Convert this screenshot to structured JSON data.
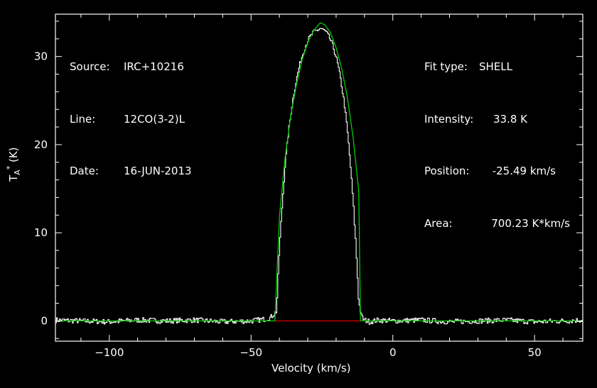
{
  "info_left": [
    {
      "key": "Source:",
      "value": "IRC+10216"
    },
    {
      "key": "Line:",
      "value": "12CO(3-2)L"
    },
    {
      "key": "Date:",
      "value": "16-JUN-2013"
    }
  ],
  "info_right": [
    {
      "key": "Fit type:",
      "value": "SHELL"
    },
    {
      "key": "Intensity:",
      "value": "33.8 K"
    },
    {
      "key": "Position:",
      "value": "-25.49 km/s"
    },
    {
      "key": "Area:",
      "value": "700.23 K*km/s"
    }
  ],
  "chart_data": {
    "type": "line",
    "xlabel": "Velocity (km/s)",
    "ylabel_main": "T",
    "ylabel_sup": "*",
    "ylabel_sub": "A",
    "ylabel_unit": "(K)",
    "xlim": [
      -119,
      67
    ],
    "ylim": [
      -2.3,
      34.8
    ],
    "xticks": [
      -100,
      -50,
      0,
      50
    ],
    "xtick_labels": [
      "−100",
      "−50",
      "0",
      "50"
    ],
    "yticks": [
      0,
      10,
      20,
      30
    ],
    "ytick_labels": [
      "0",
      "10",
      "20",
      "30"
    ],
    "colors": {
      "data": "#ffffff",
      "fit": "#00cc00",
      "baseline": "#cc0000",
      "axes": "#ffffff"
    },
    "series": [
      {
        "name": "",
        "style": "histogram",
        "x": [
          -119,
          -110,
          -100,
          -90,
          -80,
          -70,
          -60,
          -50,
          -45,
          -43,
          -41,
          -40,
          -39,
          -38,
          -37,
          -36,
          -35,
          -34,
          -33,
          -32,
          -31,
          -30,
          -29,
          -28,
          -27,
          -26,
          -25.5,
          -25,
          -24,
          -23,
          -22,
          -21,
          -20,
          -19,
          -18,
          -17,
          -16,
          -15,
          -14,
          -13,
          -12,
          -11,
          -10,
          -9,
          -8,
          -5,
          0,
          10,
          20,
          30,
          40,
          50,
          60,
          67
        ],
        "y": [
          0.1,
          0.0,
          -0.1,
          0.1,
          0.0,
          0.1,
          -0.1,
          0.0,
          0.2,
          0.4,
          1.1,
          8.0,
          13.0,
          17.5,
          20.8,
          23.4,
          25.6,
          27.3,
          28.8,
          30.0,
          31.0,
          31.8,
          32.3,
          32.7,
          32.9,
          33.1,
          33.2,
          33.1,
          32.9,
          32.5,
          31.9,
          31.1,
          30.0,
          28.5,
          26.7,
          24.5,
          21.6,
          18.0,
          13.7,
          8.6,
          2.2,
          0.5,
          0.1,
          0.0,
          -0.1,
          0.1,
          0.0,
          0.1,
          -0.1,
          0.0,
          0.1,
          -0.1,
          0.0,
          0.1
        ]
      },
      {
        "name": "",
        "style": "fit",
        "x": [
          -119,
          -41.6,
          -41.6,
          -40,
          -38,
          -36,
          -34,
          -32,
          -30,
          -28,
          -26,
          -25.5,
          -24,
          -22,
          -20,
          -18,
          -16,
          -14,
          -12,
          -11.4,
          -11.4,
          67
        ],
        "y": [
          0,
          0,
          0,
          11.8,
          18.5,
          23.3,
          26.8,
          29.6,
          31.6,
          32.9,
          33.7,
          33.8,
          33.6,
          32.7,
          31.0,
          28.6,
          25.3,
          20.8,
          14.7,
          0,
          0,
          0
        ]
      },
      {
        "name": "",
        "style": "baseline",
        "x": [
          -41.6,
          -11.4
        ],
        "y": [
          0,
          0
        ]
      }
    ]
  }
}
